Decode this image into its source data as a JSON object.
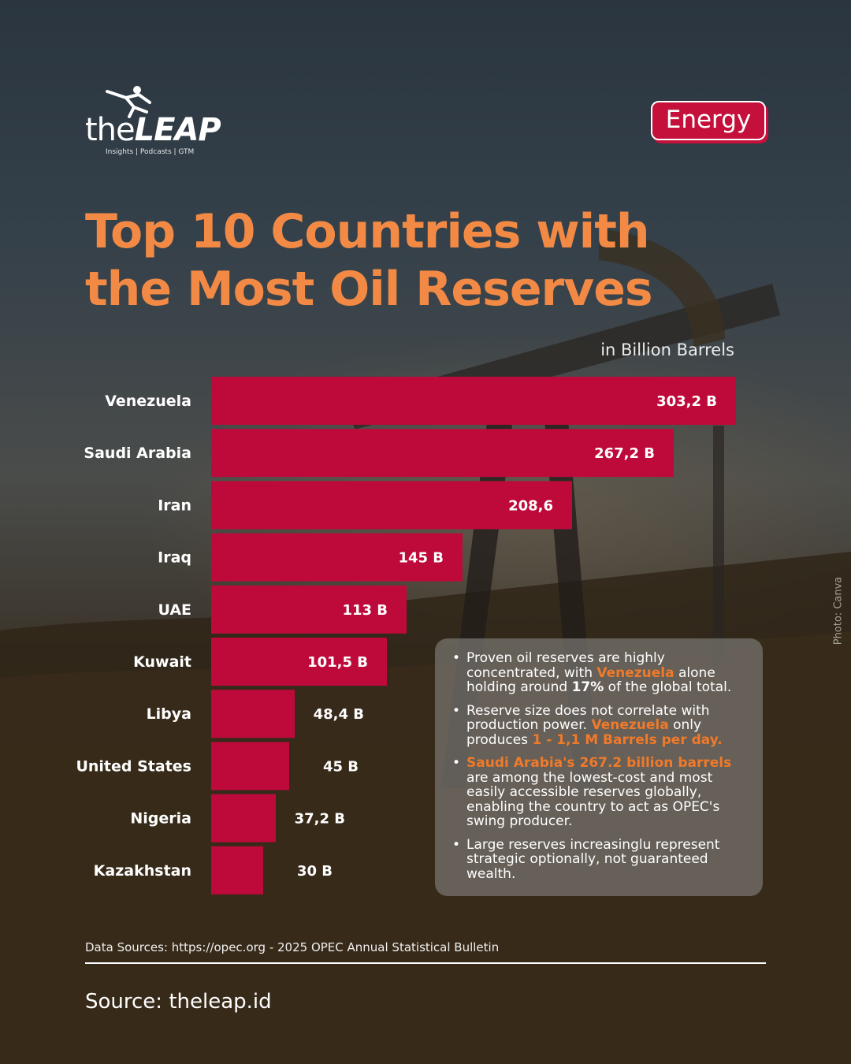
{
  "brand": {
    "name_light": "the",
    "name_bold": "LEAP",
    "tagline": "Insights | Podcasts | GTM"
  },
  "category_tag": "Energy",
  "title_line1": "Top 10 Countries with",
  "title_line2": "the Most Oil Reserves",
  "unit_label": "in Billion Barrels",
  "chart_data": {
    "type": "bar",
    "orientation": "horizontal",
    "title": "Top 10 Countries with the Most Oil Reserves",
    "xlabel": "in Billion Barrels",
    "ylabel": "",
    "categories": [
      "Venezuela",
      "Saudi Arabia",
      "Iran",
      "Iraq",
      "UAE",
      "Kuwait",
      "Libya",
      "United States",
      "Nigeria",
      "Kazakhstan"
    ],
    "values": [
      303.2,
      267.2,
      208.6,
      145,
      113,
      101.5,
      48.4,
      45,
      37.2,
      30
    ],
    "value_labels": [
      "303,2 B",
      "267,2 B",
      "208,6",
      "145 B",
      "113 B",
      "101,5 B",
      "48,4 B",
      "45 B",
      "37,2 B",
      "30 B"
    ],
    "xlim": [
      0,
      303.2
    ],
    "bar_color": "#be0a3a"
  },
  "notes": [
    [
      {
        "text": "Proven oil reserves are highly concentrated, with ",
        "hl": false
      },
      {
        "text": "Venezuela",
        "hl": true
      },
      {
        "text": " alone holding around ",
        "hl": false
      },
      {
        "text": "17%",
        "hl": false,
        "bold": true
      },
      {
        "text": " of the global total.",
        "hl": false
      }
    ],
    [
      {
        "text": "Reserve size does not correlate with production power. ",
        "hl": false
      },
      {
        "text": "Venezuela",
        "hl": true
      },
      {
        "text": " only produces ",
        "hl": false
      },
      {
        "text": "1 - 1,1 M Barrels per day.",
        "hl": true
      }
    ],
    [
      {
        "text": "Saudi Arabia's 267.2 billion barrels",
        "hl": true
      },
      {
        "text": " are among the lowest-cost and most easily accessible reserves globally, enabling the country to act as OPEC's swing producer.",
        "hl": false
      }
    ],
    [
      {
        "text": "Large reserves increasinglu represent strategic optionally, not guaranteed wealth.",
        "hl": false
      }
    ]
  ],
  "photo_credit": "Photo: Canva",
  "data_source": "Data Sources: https://opec.org - 2025 OPEC Annual Statistical Bulletin",
  "site_source": "Source: theleap.id",
  "colors": {
    "accent_orange": "#f28a45",
    "highlight_orange": "#f07a2a",
    "bar_red": "#be0a3a",
    "tag_red": "#c4103a"
  }
}
